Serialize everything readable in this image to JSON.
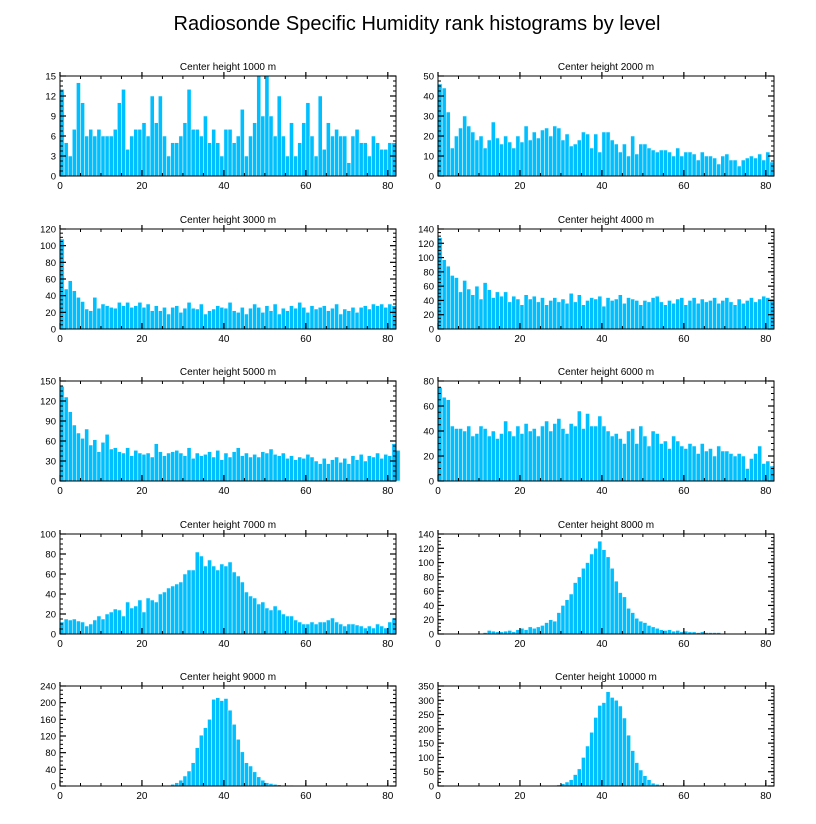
{
  "figure": {
    "title": "Radiosonde Specific Humidity rank histograms by level",
    "bar_color": "#00bfff",
    "bar_edge_color": "#ffffff",
    "axis_color": "#000000"
  },
  "chart_data": [
    {
      "type": "bar",
      "title": "Center height 1000 m",
      "xlabel": "",
      "ylabel": "",
      "xlim": [
        0,
        82
      ],
      "ylim": [
        0,
        15
      ],
      "xticks": [
        0,
        20,
        40,
        60,
        80
      ],
      "yticks": [
        0,
        3,
        6,
        9,
        12,
        15
      ],
      "values": [
        13,
        5,
        3,
        7,
        14,
        11,
        6,
        7,
        6,
        7,
        6,
        6,
        6,
        7,
        11,
        13,
        4,
        6,
        7,
        7,
        8,
        6,
        12,
        8,
        12,
        6,
        3,
        5,
        5,
        6,
        8,
        13,
        7,
        7,
        6,
        9,
        5,
        7,
        5,
        3,
        7,
        7,
        5,
        6,
        10,
        3,
        6,
        8,
        15,
        9,
        15,
        9,
        6,
        12,
        6,
        3,
        8,
        3,
        5,
        8,
        11,
        6,
        3,
        12,
        4,
        8,
        6,
        7,
        6,
        6,
        2,
        6,
        7,
        5,
        5,
        3,
        6,
        5,
        4,
        4,
        5,
        5
      ]
    },
    {
      "type": "bar",
      "title": "Center height 2000 m",
      "xlabel": "",
      "ylabel": "",
      "xlim": [
        0,
        82
      ],
      "ylim": [
        0,
        50
      ],
      "xticks": [
        0,
        20,
        40,
        60,
        80
      ],
      "yticks": [
        0,
        10,
        20,
        30,
        40,
        50
      ],
      "values": [
        46,
        44,
        32,
        14,
        20,
        24,
        30,
        25,
        22,
        18,
        20,
        14,
        18,
        27,
        19,
        16,
        20,
        17,
        14,
        20,
        17,
        25,
        18,
        22,
        19,
        23,
        24,
        20,
        25,
        24,
        18,
        21,
        15,
        16,
        18,
        22,
        21,
        14,
        21,
        12,
        22,
        22,
        18,
        16,
        12,
        16,
        10,
        20,
        11,
        16,
        16,
        14,
        13,
        12,
        13,
        13,
        12,
        10,
        14,
        10,
        12,
        12,
        11,
        8,
        12,
        10,
        10,
        9,
        6,
        10,
        11,
        8,
        8,
        5,
        8,
        9,
        10,
        9,
        11,
        8,
        12,
        7
      ]
    },
    {
      "type": "bar",
      "title": "Center height 3000 m",
      "xlabel": "",
      "ylabel": "",
      "xlim": [
        0,
        82
      ],
      "ylim": [
        0,
        120
      ],
      "xticks": [
        0,
        20,
        40,
        60,
        80
      ],
      "yticks": [
        0,
        20,
        40,
        60,
        80,
        100,
        120
      ],
      "values": [
        108,
        48,
        58,
        46,
        38,
        33,
        24,
        22,
        38,
        25,
        30,
        28,
        26,
        25,
        32,
        28,
        32,
        26,
        28,
        32,
        26,
        30,
        22,
        28,
        22,
        26,
        18,
        26,
        28,
        20,
        25,
        32,
        25,
        24,
        30,
        18,
        22,
        24,
        28,
        26,
        25,
        32,
        22,
        20,
        26,
        18,
        25,
        30,
        26,
        20,
        28,
        22,
        30,
        18,
        25,
        22,
        28,
        25,
        32,
        26,
        20,
        28,
        24,
        26,
        28,
        22,
        25,
        30,
        18,
        24,
        22,
        26,
        20,
        26,
        28,
        24,
        30,
        28,
        30,
        26,
        30,
        28
      ]
    },
    {
      "type": "bar",
      "title": "Center height 4000 m",
      "xlabel": "",
      "ylabel": "",
      "xlim": [
        0,
        82
      ],
      "ylim": [
        0,
        140
      ],
      "xticks": [
        0,
        20,
        40,
        60,
        80
      ],
      "yticks": [
        0,
        20,
        40,
        60,
        80,
        100,
        120,
        140
      ],
      "values": [
        128,
        97,
        88,
        75,
        72,
        52,
        68,
        56,
        48,
        60,
        42,
        65,
        55,
        44,
        52,
        46,
        52,
        38,
        46,
        42,
        34,
        48,
        42,
        46,
        38,
        44,
        34,
        40,
        44,
        38,
        42,
        36,
        50,
        38,
        48,
        34,
        40,
        44,
        42,
        46,
        32,
        44,
        40,
        42,
        48,
        36,
        44,
        42,
        40,
        34,
        40,
        38,
        44,
        46,
        38,
        34,
        40,
        36,
        42,
        44,
        34,
        40,
        44,
        36,
        42,
        38,
        40,
        44,
        36,
        40,
        44,
        38,
        34,
        42,
        36,
        40,
        44,
        38,
        42,
        46,
        44,
        42
      ]
    },
    {
      "type": "bar",
      "title": "Center height 5000 m",
      "xlabel": "",
      "ylabel": "",
      "xlim": [
        0,
        82
      ],
      "ylim": [
        0,
        150
      ],
      "xticks": [
        0,
        20,
        40,
        60,
        80
      ],
      "yticks": [
        0,
        30,
        60,
        90,
        120,
        150
      ],
      "values": [
        142,
        126,
        104,
        84,
        72,
        64,
        78,
        54,
        62,
        44,
        58,
        70,
        48,
        50,
        44,
        42,
        50,
        38,
        46,
        42,
        40,
        42,
        36,
        56,
        44,
        38,
        42,
        44,
        46,
        42,
        38,
        50,
        34,
        42,
        38,
        40,
        44,
        36,
        46,
        32,
        42,
        36,
        44,
        50,
        38,
        42,
        36,
        40,
        36,
        44,
        42,
        48,
        40,
        38,
        42,
        34,
        38,
        32,
        36,
        34,
        40,
        36,
        30,
        26,
        34,
        26,
        32,
        36,
        28,
        34,
        26,
        38,
        32,
        40,
        30,
        38,
        36,
        42,
        34,
        40,
        38,
        56,
        46
      ]
    },
    {
      "type": "bar",
      "title": "Center height 6000 m",
      "xlabel": "",
      "ylabel": "",
      "xlim": [
        0,
        82
      ],
      "ylim": [
        0,
        80
      ],
      "xticks": [
        0,
        20,
        40,
        60,
        80
      ],
      "yticks": [
        0,
        20,
        40,
        60,
        80
      ],
      "values": [
        75,
        67,
        65,
        44,
        42,
        42,
        40,
        44,
        36,
        38,
        44,
        42,
        36,
        40,
        34,
        38,
        48,
        40,
        36,
        44,
        38,
        46,
        40,
        42,
        36,
        44,
        48,
        40,
        46,
        50,
        42,
        38,
        46,
        44,
        56,
        42,
        54,
        44,
        44,
        52,
        44,
        40,
        36,
        38,
        34,
        30,
        40,
        42,
        30,
        44,
        36,
        28,
        40,
        38,
        30,
        32,
        26,
        36,
        32,
        28,
        26,
        30,
        28,
        22,
        30,
        24,
        26,
        20,
        28,
        24,
        24,
        22,
        20,
        22,
        20,
        10,
        18,
        22,
        28,
        14,
        16,
        12
      ]
    },
    {
      "type": "bar",
      "title": "Center height 7000 m",
      "xlabel": "",
      "ylabel": "",
      "xlim": [
        0,
        82
      ],
      "ylim": [
        0,
        100
      ],
      "xticks": [
        0,
        20,
        40,
        60,
        80
      ],
      "yticks": [
        0,
        20,
        40,
        60,
        80,
        100
      ],
      "values": [
        12,
        15,
        14,
        15,
        13,
        12,
        8,
        10,
        14,
        18,
        15,
        20,
        22,
        25,
        24,
        18,
        32,
        26,
        28,
        34,
        22,
        36,
        34,
        32,
        40,
        42,
        46,
        48,
        50,
        52,
        60,
        64,
        64,
        82,
        78,
        68,
        74,
        68,
        64,
        70,
        68,
        72,
        62,
        58,
        52,
        42,
        38,
        36,
        30,
        32,
        26,
        24,
        28,
        24,
        20,
        18,
        18,
        14,
        12,
        10,
        10,
        12,
        10,
        12,
        12,
        14,
        16,
        12,
        10,
        8,
        10,
        10,
        9,
        8,
        6,
        8,
        6,
        10,
        8,
        6,
        12,
        16
      ]
    },
    {
      "type": "bar",
      "title": "Center height 8000 m",
      "xlabel": "",
      "ylabel": "",
      "xlim": [
        0,
        82
      ],
      "ylim": [
        0,
        140
      ],
      "xticks": [
        0,
        20,
        40,
        60,
        80
      ],
      "yticks": [
        0,
        20,
        40,
        60,
        80,
        100,
        120,
        140
      ],
      "values": [
        0,
        0,
        0,
        0,
        0,
        0,
        0,
        0,
        1,
        1,
        1,
        2,
        5,
        4,
        3,
        3,
        4,
        5,
        3,
        6,
        8,
        6,
        10,
        8,
        10,
        12,
        16,
        20,
        18,
        30,
        40,
        48,
        56,
        72,
        80,
        92,
        100,
        112,
        120,
        130,
        118,
        108,
        92,
        74,
        58,
        52,
        36,
        30,
        22,
        18,
        16,
        12,
        10,
        8,
        6,
        5,
        6,
        4,
        5,
        3,
        4,
        3,
        3,
        2,
        3,
        2,
        2,
        2,
        2,
        1,
        1,
        1,
        1,
        1,
        0,
        0,
        0,
        0,
        0,
        0,
        0,
        0
      ]
    },
    {
      "type": "bar",
      "title": "Center height 9000 m",
      "xlabel": "",
      "ylabel": "",
      "xlim": [
        0,
        82
      ],
      "ylim": [
        0,
        240
      ],
      "xticks": [
        0,
        20,
        40,
        60,
        80
      ],
      "yticks": [
        0,
        40,
        80,
        120,
        160,
        200,
        240
      ],
      "values": [
        0,
        0,
        0,
        0,
        0,
        0,
        0,
        0,
        0,
        0,
        0,
        0,
        0,
        0,
        0,
        0,
        0,
        0,
        0,
        0,
        0,
        0,
        0,
        0,
        1,
        2,
        2,
        4,
        8,
        14,
        24,
        36,
        56,
        92,
        122,
        140,
        160,
        208,
        212,
        205,
        210,
        182,
        148,
        112,
        82,
        56,
        48,
        34,
        22,
        14,
        8,
        6,
        4,
        3,
        2,
        2,
        2,
        1,
        1,
        1,
        1,
        1,
        0,
        0,
        0,
        0,
        0,
        0,
        0,
        0,
        0,
        0,
        0,
        0,
        0,
        0,
        0,
        0,
        0,
        0,
        0,
        0
      ]
    },
    {
      "type": "bar",
      "title": "Center height 10000 m",
      "xlabel": "",
      "ylabel": "",
      "xlim": [
        0,
        82
      ],
      "ylim": [
        0,
        350
      ],
      "xticks": [
        0,
        20,
        40,
        60,
        80
      ],
      "yticks": [
        0,
        50,
        100,
        150,
        200,
        250,
        300,
        350
      ],
      "values": [
        0,
        0,
        0,
        0,
        0,
        0,
        0,
        0,
        0,
        0,
        0,
        0,
        0,
        0,
        0,
        0,
        0,
        0,
        0,
        0,
        0,
        0,
        0,
        0,
        0,
        0,
        0,
        1,
        2,
        4,
        8,
        14,
        22,
        40,
        60,
        100,
        140,
        188,
        240,
        282,
        292,
        330,
        310,
        300,
        280,
        238,
        178,
        124,
        82,
        56,
        36,
        22,
        10,
        6,
        4,
        3,
        2,
        2,
        1,
        1,
        1,
        0,
        0,
        0,
        0,
        0,
        0,
        0,
        0,
        0,
        0,
        0,
        0,
        0,
        0,
        0,
        0,
        0,
        0,
        0,
        0,
        0
      ]
    }
  ]
}
